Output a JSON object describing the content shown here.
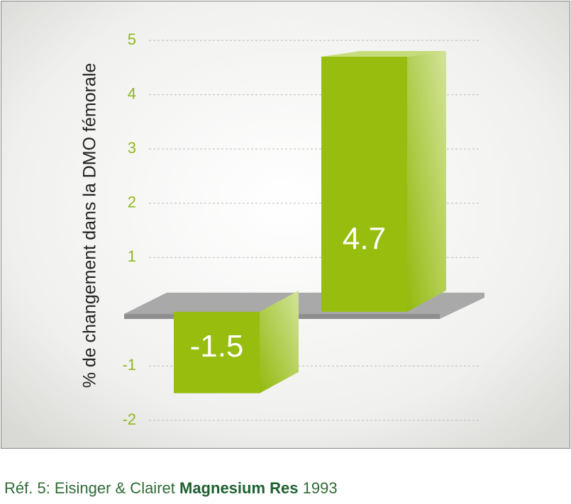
{
  "chart_data": {
    "type": "bar3d",
    "y_label": "% de changement dans la DMO fémorale",
    "categories": [
      null,
      null
    ],
    "values": [
      -1.5,
      4.7
    ],
    "color": "#97bd0f",
    "ylim": [
      -2,
      5
    ],
    "yticks": [
      -2,
      -1,
      1,
      2,
      3,
      4,
      5
    ],
    "grid": true
  },
  "footer": {
    "reference": "Réf. 5: Eisinger & Clairet",
    "journal": "Magnesium Res",
    "year": "1993"
  }
}
